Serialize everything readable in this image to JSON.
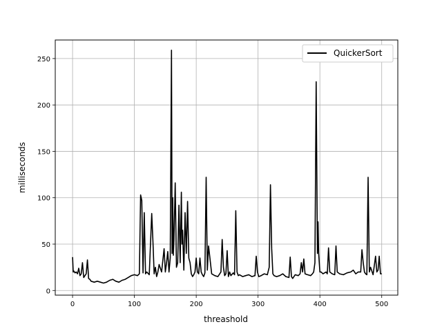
{
  "chart_data": {
    "type": "line",
    "title": "",
    "xlabel": "threashold",
    "ylabel": "milliseconds",
    "xlim": [
      -28,
      526
    ],
    "ylim": [
      -5,
      270
    ],
    "xticks": [
      0,
      100,
      200,
      300,
      400,
      500
    ],
    "yticks": [
      0,
      50,
      100,
      150,
      200,
      250
    ],
    "grid": true,
    "legend": {
      "location": "top-right"
    },
    "series": [
      {
        "name": "QuickerSort",
        "color": "#000000",
        "x": [
          0,
          1,
          2,
          4,
          6,
          8,
          10,
          12,
          14,
          16,
          18,
          20,
          22,
          24,
          26,
          28,
          30,
          35,
          40,
          45,
          50,
          55,
          60,
          65,
          70,
          75,
          80,
          85,
          90,
          95,
          100,
          105,
          108,
          110,
          112,
          114,
          116,
          118,
          120,
          124,
          128,
          130,
          132,
          134,
          136,
          138,
          140,
          144,
          148,
          150,
          152,
          154,
          156,
          158,
          160,
          161,
          162,
          163,
          164,
          166,
          168,
          170,
          172,
          174,
          176,
          177,
          178,
          180,
          182,
          184,
          186,
          188,
          190,
          192,
          194,
          196,
          198,
          200,
          202,
          204,
          206,
          208,
          210,
          212,
          214,
          216,
          218,
          220,
          225,
          230,
          235,
          240,
          242,
          244,
          246,
          248,
          250,
          252,
          254,
          256,
          260,
          262,
          264,
          266,
          268,
          270,
          275,
          280,
          285,
          290,
          295,
          297,
          299,
          301,
          305,
          310,
          315,
          318,
          320,
          322,
          324,
          326,
          330,
          335,
          340,
          345,
          350,
          352,
          354,
          356,
          360,
          365,
          368,
          370,
          372,
          374,
          376,
          380,
          385,
          388,
          390,
          392,
          394,
          396,
          397,
          398,
          400,
          402,
          405,
          410,
          412,
          414,
          416,
          420,
          424,
          426,
          428,
          432,
          438,
          444,
          450,
          454,
          458,
          462,
          466,
          468,
          470,
          472,
          474,
          476,
          478,
          480,
          482,
          486,
          490,
          492,
          494,
          496,
          498,
          500
        ],
        "y": [
          36,
          20,
          21,
          19,
          20,
          18,
          24,
          16,
          18,
          30,
          14,
          16,
          18,
          33,
          13,
          12,
          10,
          9,
          10,
          9,
          8,
          9,
          11,
          12,
          10,
          9,
          11,
          12,
          14,
          16,
          17,
          16,
          18,
          103,
          97,
          19,
          84,
          18,
          20,
          17,
          83,
          52,
          18,
          25,
          15,
          20,
          28,
          20,
          45,
          20,
          30,
          42,
          20,
          35,
          259,
          40,
          100,
          38,
          55,
          116,
          25,
          30,
          92,
          30,
          106,
          50,
          65,
          22,
          84,
          40,
          96,
          35,
          30,
          18,
          15,
          17,
          20,
          35,
          20,
          18,
          35,
          20,
          17,
          15,
          19,
          122,
          22,
          48,
          18,
          16,
          15,
          20,
          55,
          25,
          16,
          18,
          43,
          15,
          20,
          16,
          19,
          17,
          86,
          20,
          16,
          17,
          15,
          16,
          17,
          15,
          16,
          37,
          20,
          15,
          16,
          18,
          17,
          25,
          114,
          45,
          18,
          16,
          15,
          16,
          18,
          15,
          14,
          36,
          15,
          13,
          17,
          16,
          18,
          30,
          20,
          34,
          18,
          17,
          16,
          18,
          20,
          30,
          225,
          40,
          74,
          40,
          20,
          20,
          18,
          20,
          18,
          46,
          20,
          18,
          17,
          48,
          20,
          18,
          17,
          19,
          20,
          22,
          18,
          20,
          20,
          44,
          30,
          20,
          18,
          17,
          122,
          20,
          25,
          17,
          37,
          20,
          22,
          37,
          18,
          18
        ]
      }
    ]
  }
}
